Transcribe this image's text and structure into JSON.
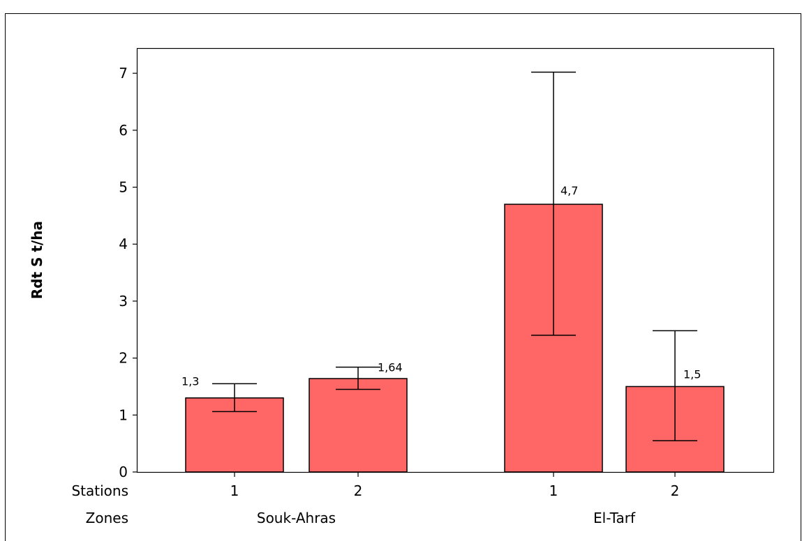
{
  "chart_data": {
    "type": "bar",
    "ylabel": "Rdt S t/ha",
    "ylim": [
      0,
      7.3
    ],
    "yticks": [
      "0",
      "1",
      "2",
      "3",
      "4",
      "5",
      "6",
      "7"
    ],
    "grid": false,
    "bar_color": "#FF6666",
    "row_labels": {
      "stations": "Stations",
      "zones": "Zones"
    },
    "groups": [
      {
        "zone": "Souk-Ahras",
        "bars": [
          {
            "station": "1",
            "value": 1.3,
            "label": "1,3",
            "err_low": 1.06,
            "err_high": 1.55
          },
          {
            "station": "2",
            "value": 1.64,
            "label": "1,64",
            "err_low": 1.45,
            "err_high": 1.84
          }
        ]
      },
      {
        "zone": "El-Tarf",
        "bars": [
          {
            "station": "1",
            "value": 4.7,
            "label": "4,7",
            "err_low": 2.4,
            "err_high": 7.02
          },
          {
            "station": "2",
            "value": 1.5,
            "label": "1,5",
            "err_low": 0.55,
            "err_high": 2.48
          }
        ]
      }
    ]
  }
}
